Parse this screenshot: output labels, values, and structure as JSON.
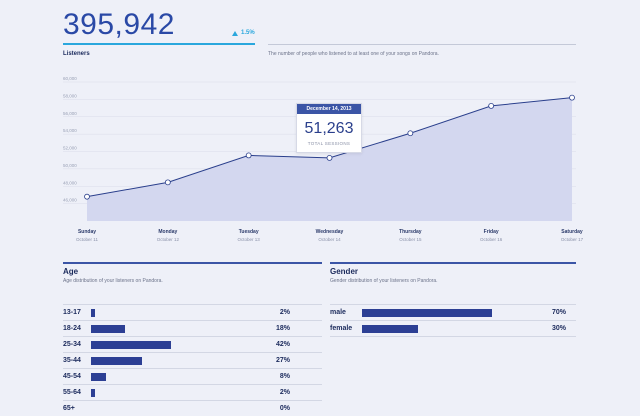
{
  "header": {
    "total_value": "395,942",
    "change": "1.5%",
    "label": "Listeners",
    "description": "The number of people who listened to at least one of your songs on Pandora."
  },
  "chart_data": {
    "type": "area",
    "y_ticks": [
      "60,000",
      "58,000",
      "56,000",
      "54,000",
      "52,000",
      "50,000",
      "48,000",
      "46,000"
    ],
    "ylim": [
      44000,
      60000
    ],
    "days": [
      "Sunday",
      "Monday",
      "Tuesday",
      "Wednesday",
      "Thursday",
      "Friday",
      "Saturday"
    ],
    "dates": [
      "October 11",
      "October 12",
      "October 13",
      "October 14",
      "October 15",
      "October 16",
      "October 17"
    ],
    "values": [
      46800,
      48450,
      51550,
      51263,
      54100,
      57250,
      58200
    ],
    "colors": {
      "line": "#2a3f8c",
      "fill": "#d3d7ef"
    }
  },
  "tooltip": {
    "date": "December 14, 2013",
    "value": "51,263",
    "label": "TOTAL SESSIONS"
  },
  "age": {
    "title": "Age",
    "description": "Age distribution of your listeners on Pandora.",
    "rows": [
      {
        "label": "13-17",
        "percent": "2%",
        "value": 2
      },
      {
        "label": "18-24",
        "percent": "18%",
        "value": 18
      },
      {
        "label": "25-34",
        "percent": "42%",
        "value": 42
      },
      {
        "label": "35-44",
        "percent": "27%",
        "value": 27
      },
      {
        "label": "45-54",
        "percent": "8%",
        "value": 8
      },
      {
        "label": "55-64",
        "percent": "2%",
        "value": 2
      },
      {
        "label": "65+",
        "percent": "0%",
        "value": 0
      }
    ]
  },
  "gender": {
    "title": "Gender",
    "description": "Gender distribution of your listeners on Pandora.",
    "rows": [
      {
        "label": "male",
        "percent": "70%",
        "value": 70
      },
      {
        "label": "female",
        "percent": "30%",
        "value": 30
      }
    ]
  }
}
